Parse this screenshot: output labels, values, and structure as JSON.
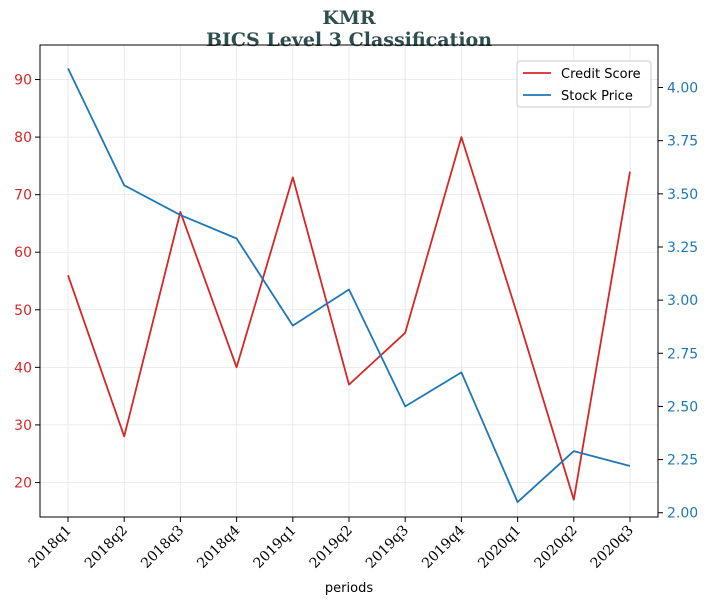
{
  "chart_data": {
    "type": "line",
    "title": "KMR",
    "subtitle": "BICS Level 3 Classification",
    "xlabel": "periods",
    "categories": [
      "2018q1",
      "2018q2",
      "2018q3",
      "2018q4",
      "2019q1",
      "2019q2",
      "2019q3",
      "2019q4",
      "2020q1",
      "2020q2",
      "2020q3"
    ],
    "series": [
      {
        "name": "Credit Score",
        "axis": "left",
        "color": "#d62728",
        "values": [
          56,
          28,
          67,
          40,
          73,
          37,
          46,
          80,
          49,
          17,
          74
        ]
      },
      {
        "name": "Stock Price",
        "axis": "right",
        "color": "#1f77b4",
        "values": [
          4.09,
          3.54,
          3.4,
          3.29,
          2.88,
          3.05,
          2.5,
          2.66,
          2.05,
          2.29,
          2.22
        ]
      }
    ],
    "y_left": {
      "ylim": [
        14,
        96
      ],
      "ticks": [
        20,
        30,
        40,
        50,
        60,
        70,
        80,
        90
      ],
      "color": "#d62728"
    },
    "y_right": {
      "ylim": [
        1.98,
        4.2
      ],
      "ticks": [
        "2.00",
        "2.25",
        "2.50",
        "2.75",
        "3.00",
        "3.25",
        "3.50",
        "3.75",
        "4.00"
      ],
      "color": "#1f77b4"
    },
    "grid": true,
    "legend_position": "top-right"
  }
}
